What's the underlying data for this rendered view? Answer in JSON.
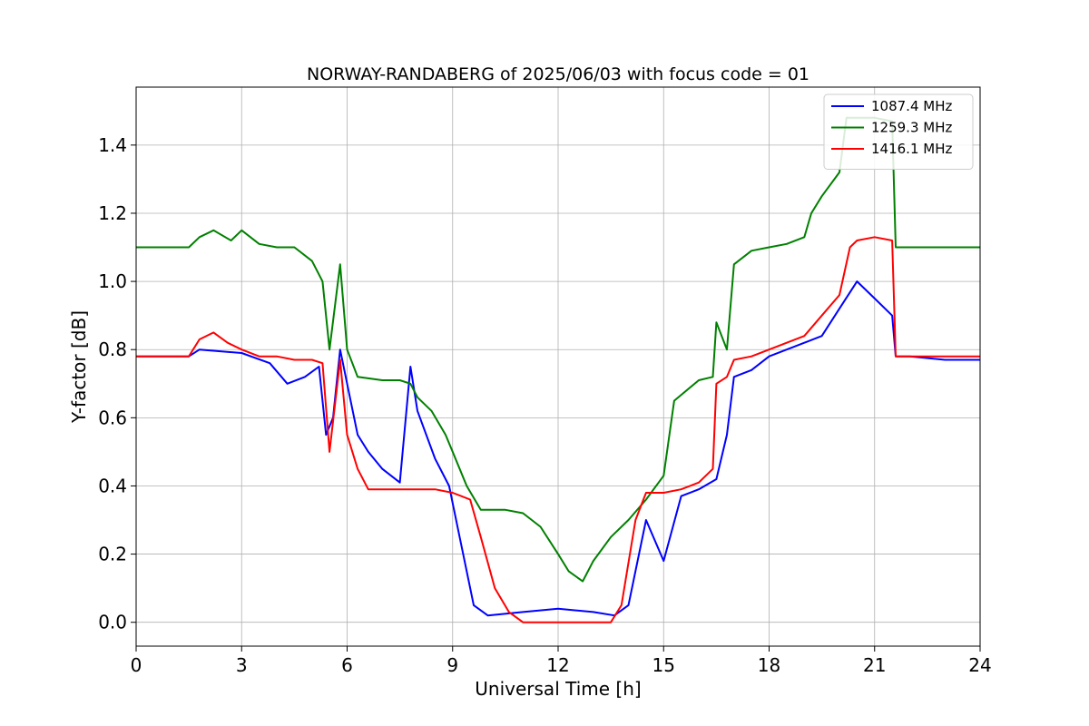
{
  "chart_data": {
    "type": "line",
    "title": "NORWAY-RANDABERG of 2025/06/03 with focus code = 01",
    "xlabel": "Universal Time [h]",
    "ylabel": "Y-factor [dB]",
    "xlim": [
      0,
      24
    ],
    "ylim": [
      -0.07,
      1.57
    ],
    "xticks": [
      0,
      3,
      6,
      9,
      12,
      15,
      18,
      21,
      24
    ],
    "yticks": [
      0.0,
      0.2,
      0.4,
      0.6,
      0.8,
      1.0,
      1.2,
      1.4
    ],
    "ytick_labels": [
      "0.0",
      "0.2",
      "0.4",
      "0.6",
      "0.8",
      "1.0",
      "1.2",
      "1.4"
    ],
    "grid": true,
    "legend_position": "top-right",
    "series": [
      {
        "name": "1087.4 MHz",
        "color": "#0000ff",
        "x": [
          0,
          1.5,
          1.8,
          3.0,
          3.8,
          4.3,
          4.8,
          5.2,
          5.4,
          5.6,
          5.8,
          6.0,
          6.3,
          6.6,
          7.0,
          7.5,
          7.8,
          8.0,
          8.5,
          8.9,
          9.2,
          9.6,
          10.0,
          11.0,
          12.0,
          13.0,
          13.6,
          14.0,
          14.5,
          15.0,
          15.5,
          16.0,
          16.5,
          16.8,
          17.0,
          17.5,
          18.0,
          18.5,
          19.0,
          19.5,
          20.0,
          20.5,
          21.0,
          21.5,
          21.6,
          22.0,
          23.0,
          24.0
        ],
        "y": [
          0.78,
          0.78,
          0.8,
          0.79,
          0.76,
          0.7,
          0.72,
          0.75,
          0.55,
          0.6,
          0.8,
          0.7,
          0.55,
          0.5,
          0.45,
          0.41,
          0.75,
          0.62,
          0.48,
          0.4,
          0.25,
          0.05,
          0.02,
          0.03,
          0.04,
          0.03,
          0.02,
          0.05,
          0.3,
          0.18,
          0.37,
          0.39,
          0.42,
          0.55,
          0.72,
          0.74,
          0.78,
          0.8,
          0.82,
          0.84,
          0.92,
          1.0,
          0.95,
          0.9,
          0.78,
          0.78,
          0.77,
          0.77
        ]
      },
      {
        "name": "1259.3 MHz",
        "color": "#008000",
        "x": [
          0,
          1.5,
          1.8,
          2.2,
          2.7,
          3.0,
          3.5,
          4.0,
          4.5,
          5.0,
          5.3,
          5.5,
          5.8,
          6.0,
          6.3,
          7.0,
          7.5,
          7.8,
          8.0,
          8.4,
          8.8,
          9.0,
          9.4,
          9.8,
          10.5,
          11.0,
          11.5,
          12.0,
          12.3,
          12.7,
          13.0,
          13.5,
          14.0,
          14.5,
          15.0,
          15.3,
          16.0,
          16.4,
          16.5,
          16.8,
          17.0,
          17.5,
          18.0,
          18.5,
          19.0,
          19.2,
          19.5,
          20.0,
          20.2,
          21.0,
          21.5,
          21.6,
          22.0,
          23.0,
          24.0
        ],
        "y": [
          1.1,
          1.1,
          1.13,
          1.15,
          1.12,
          1.15,
          1.11,
          1.1,
          1.1,
          1.06,
          1.0,
          0.8,
          1.05,
          0.8,
          0.72,
          0.71,
          0.71,
          0.7,
          0.66,
          0.62,
          0.55,
          0.5,
          0.4,
          0.33,
          0.33,
          0.32,
          0.28,
          0.2,
          0.15,
          0.12,
          0.18,
          0.25,
          0.3,
          0.36,
          0.43,
          0.65,
          0.71,
          0.72,
          0.88,
          0.8,
          1.05,
          1.09,
          1.1,
          1.11,
          1.13,
          1.2,
          1.25,
          1.32,
          1.48,
          1.48,
          1.47,
          1.1,
          1.1,
          1.1,
          1.1
        ]
      },
      {
        "name": "1416.1 MHz",
        "color": "#ff0000",
        "x": [
          0,
          1.5,
          1.8,
          2.2,
          2.6,
          3.0,
          3.5,
          4.0,
          4.5,
          5.0,
          5.3,
          5.5,
          5.8,
          6.0,
          6.3,
          6.6,
          7.0,
          8.0,
          8.5,
          9.0,
          9.5,
          9.8,
          10.2,
          10.6,
          11.0,
          12.0,
          13.0,
          13.5,
          13.8,
          14.2,
          14.5,
          15.0,
          15.5,
          16.0,
          16.4,
          16.5,
          16.8,
          17.0,
          17.5,
          18.0,
          18.5,
          19.0,
          19.5,
          20.0,
          20.3,
          20.5,
          21.0,
          21.5,
          21.6,
          22.0,
          23.0,
          24.0
        ],
        "y": [
          0.78,
          0.78,
          0.83,
          0.85,
          0.82,
          0.8,
          0.78,
          0.78,
          0.77,
          0.77,
          0.76,
          0.5,
          0.77,
          0.55,
          0.45,
          0.39,
          0.39,
          0.39,
          0.39,
          0.38,
          0.36,
          0.25,
          0.1,
          0.03,
          0.0,
          0.0,
          0.0,
          0.0,
          0.05,
          0.3,
          0.38,
          0.38,
          0.39,
          0.41,
          0.45,
          0.7,
          0.72,
          0.77,
          0.78,
          0.8,
          0.82,
          0.84,
          0.9,
          0.96,
          1.1,
          1.12,
          1.13,
          1.12,
          0.78,
          0.78,
          0.78,
          0.78
        ]
      }
    ]
  }
}
